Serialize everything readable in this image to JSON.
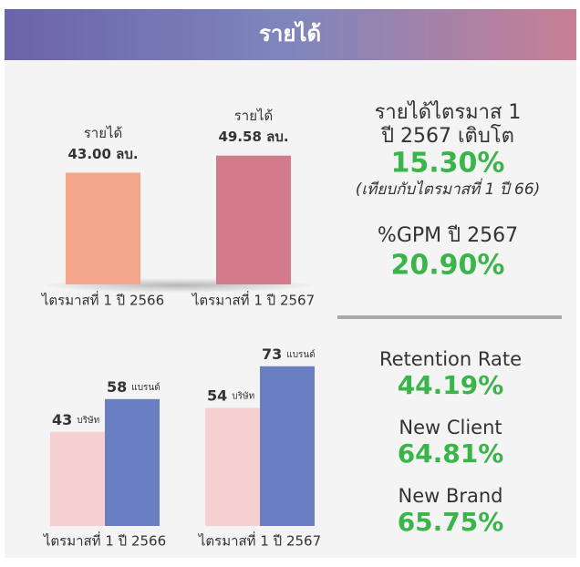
{
  "header": {
    "title": "รายได้"
  },
  "chart_data": [
    {
      "type": "bar",
      "annotation": "รายได้",
      "categories": [
        "ไตรมาสที่ 1 ปี 2566",
        "ไตรมาสที่ 1 ปี 2567"
      ],
      "values": [
        43.0,
        49.58
      ],
      "value_labels": [
        "43.00 ลบ.",
        "49.58 ลบ."
      ],
      "colors": [
        "#f4a68c",
        "#d17b8b"
      ]
    },
    {
      "type": "grouped_bar",
      "categories": [
        "ไตรมาสที่ 1 ปี 2566",
        "ไตรมาสที่ 1 ปี 2567"
      ],
      "series": [
        {
          "name": "บริษัท",
          "color": "#f6d0d0",
          "values": [
            43,
            54
          ]
        },
        {
          "name": "แบรนด์",
          "color": "#6a7fc1",
          "values": [
            58,
            73
          ]
        }
      ]
    }
  ],
  "stats": {
    "growth": {
      "line1": "รายได้ไตรมาส 1",
      "line2": "ปี 2567 เติบโต",
      "value": "15.30%",
      "note": "(เทียบกับไตรมาสที่ 1 ปี 66)"
    },
    "gpm": {
      "label": "%GPM ปี 2567",
      "value": "20.90%"
    },
    "items": [
      {
        "label": "Retention Rate",
        "value": "44.19%"
      },
      {
        "label": "New Client",
        "value": "64.81%"
      },
      {
        "label": "New Brand",
        "value": "65.75%"
      }
    ]
  }
}
